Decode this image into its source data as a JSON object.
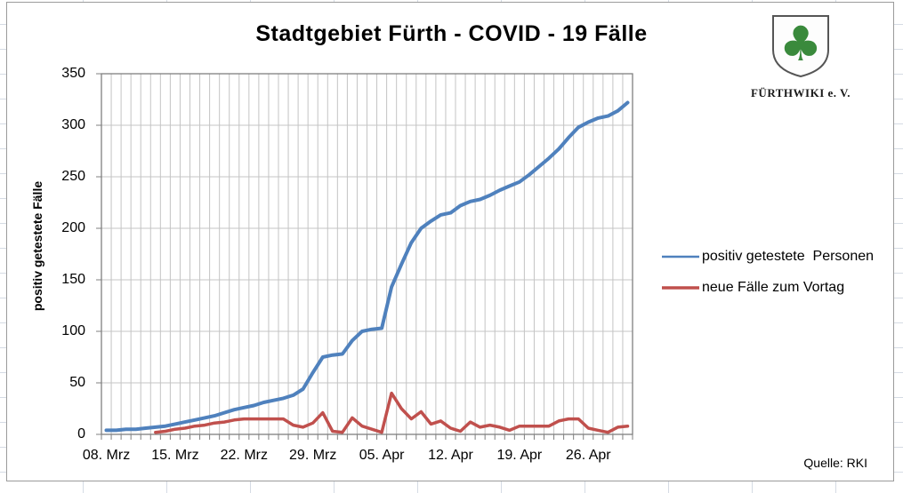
{
  "chart_data": {
    "type": "line",
    "title": "Stadtgebiet Fürth - COVID - 19 Fälle",
    "ylabel": "positiv getestete Fälle",
    "ylim": [
      0,
      350
    ],
    "ytick_step": 50,
    "yticks": [
      0,
      50,
      100,
      150,
      200,
      250,
      300,
      350
    ],
    "n_days": 54,
    "x_start_date": "08. Mrz",
    "x_end_date": "30. Apr",
    "xtick_days": [
      0,
      7,
      14,
      21,
      28,
      35,
      42,
      49
    ],
    "xtick_labels": [
      "08. Mrz",
      "15. Mrz",
      "22. Mrz",
      "29. Mrz",
      "05. Apr",
      "12. Apr",
      "19. Apr",
      "26. Apr"
    ],
    "grid": "daily vertical gridlines, horizontal every 50",
    "legend_position": "right",
    "series": [
      {
        "name": "positiv getestete  Personen",
        "color": "#4F81BD",
        "start_day": 0,
        "values": [
          4,
          4,
          5,
          5,
          6,
          7,
          8,
          10,
          12,
          14,
          16,
          18,
          21,
          24,
          26,
          28,
          31,
          33,
          35,
          38,
          44,
          60,
          75,
          77,
          78,
          91,
          100,
          102,
          103,
          143,
          165,
          186,
          200,
          207,
          213,
          215,
          222,
          226,
          228,
          232,
          237,
          241,
          245,
          252,
          260,
          268,
          277,
          288,
          298,
          303,
          307,
          309,
          314,
          322
        ]
      },
      {
        "name": "neue Fälle zum Vortag",
        "color": "#C0504D",
        "start_day": 5,
        "values": [
          2,
          3,
          5,
          6,
          8,
          9,
          11,
          12,
          14,
          15,
          15,
          15,
          15,
          15,
          9,
          7,
          11,
          21,
          3,
          2,
          16,
          8,
          5,
          2,
          40,
          25,
          15,
          22,
          10,
          13,
          6,
          3,
          12,
          7,
          9,
          7,
          4,
          8,
          8,
          8,
          8,
          13,
          15,
          15,
          6,
          4,
          2,
          7,
          8
        ]
      }
    ],
    "source": "Quelle: RKI"
  },
  "logo": {
    "org": "FÜRTHWIKI e. V.",
    "icon": "cloverleaf-shield",
    "clover_color": "#3a8a3c"
  }
}
